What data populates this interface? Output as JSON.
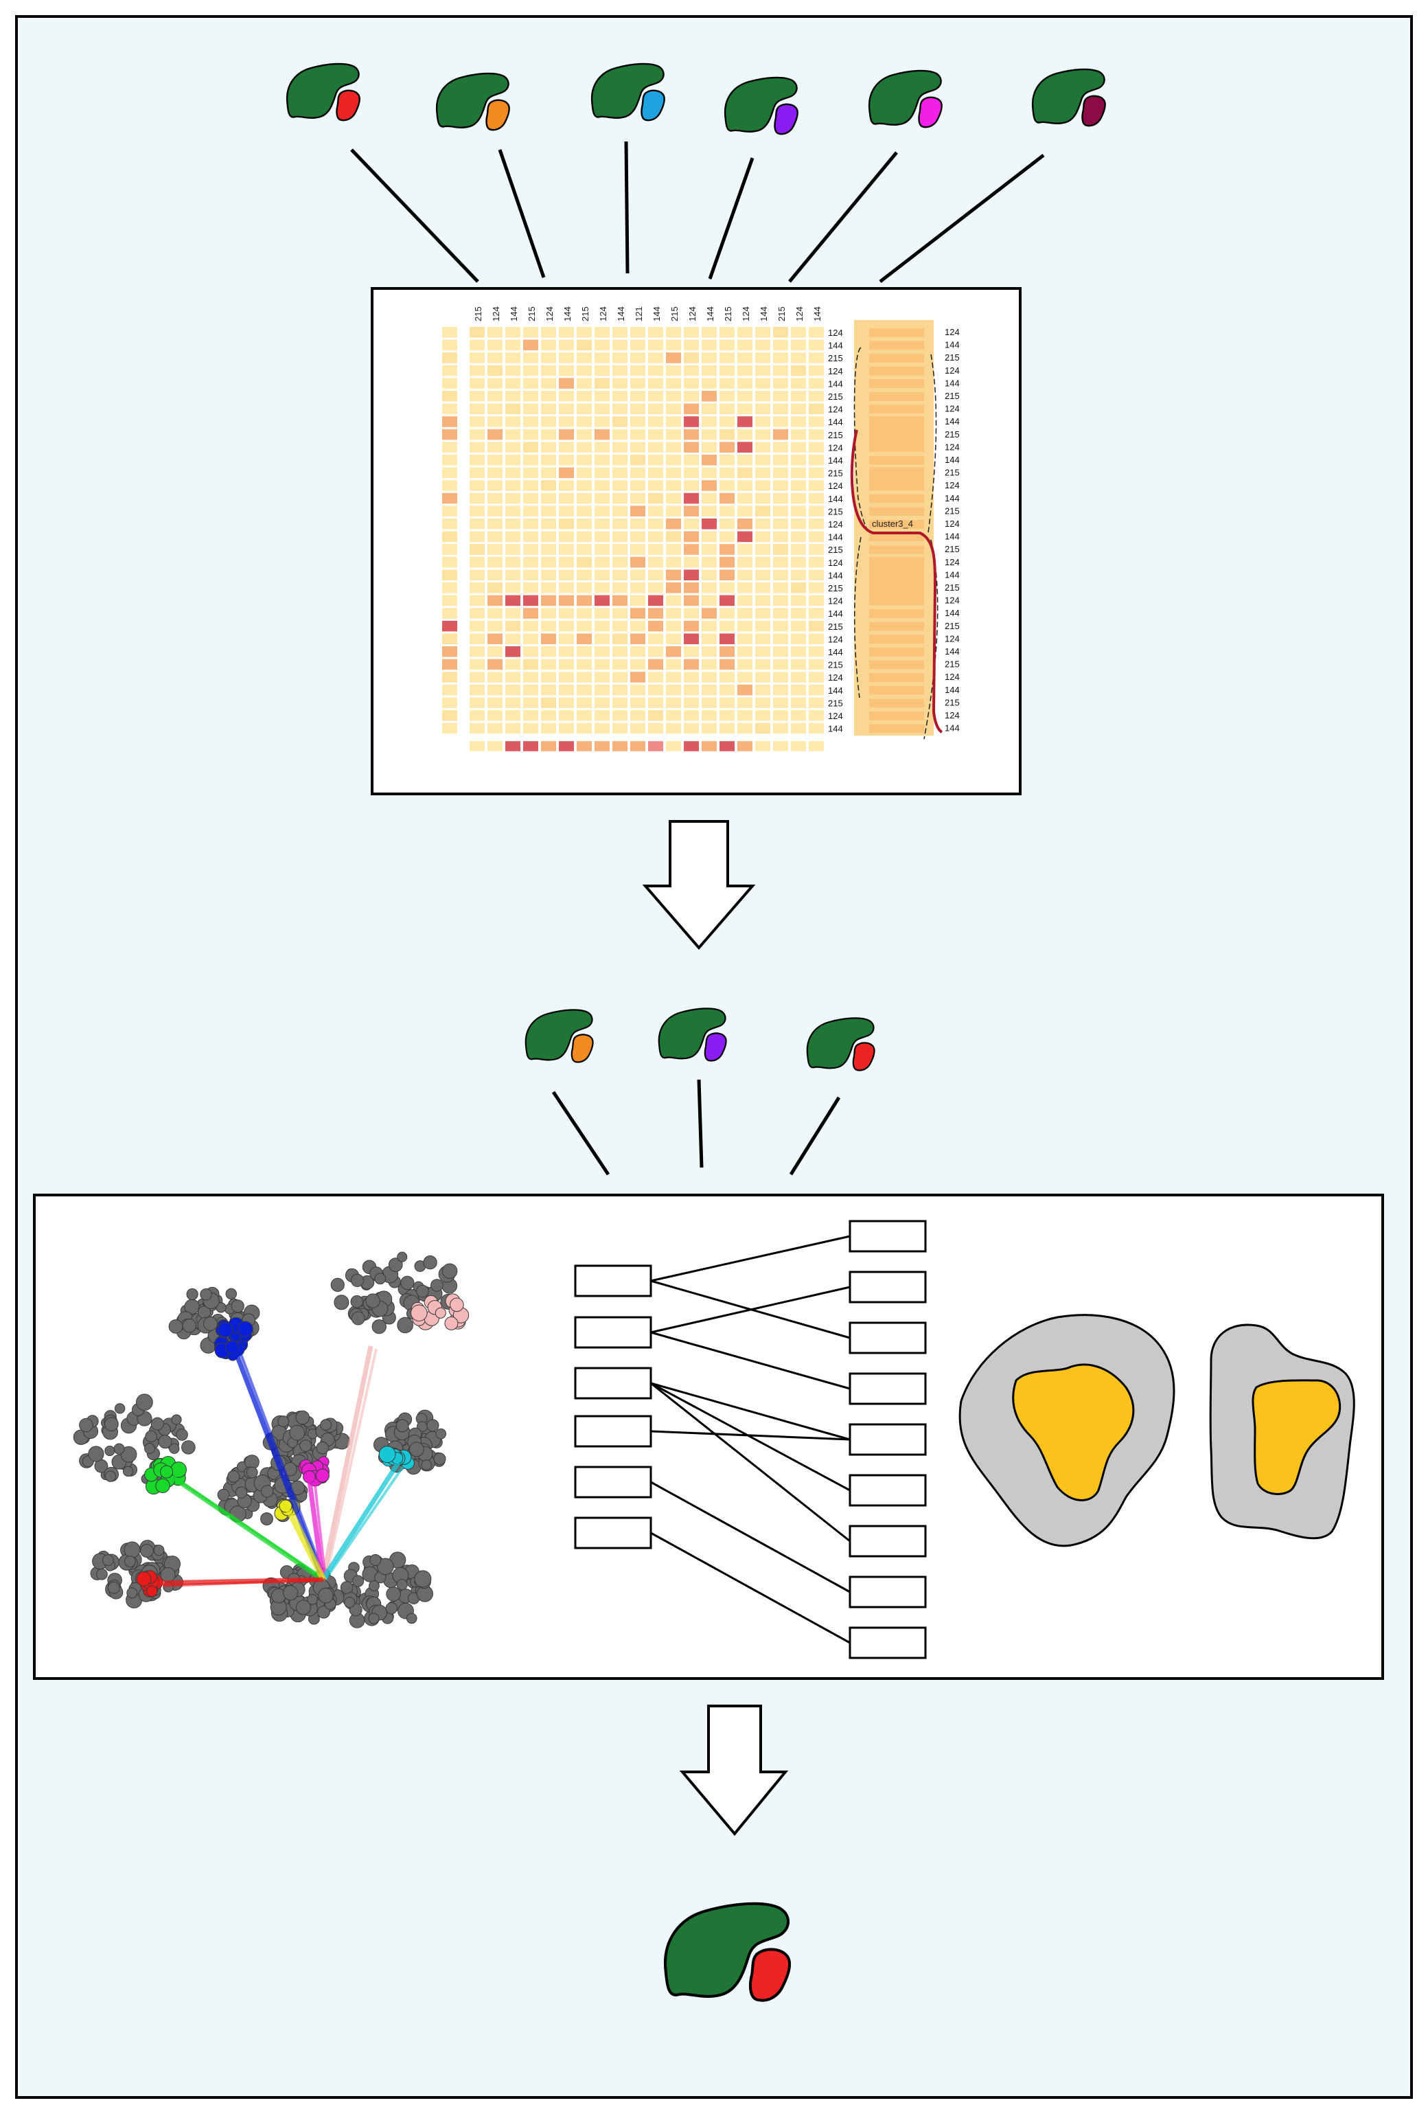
{
  "colors": {
    "background": "#eef8fb",
    "frame": "#000000",
    "shape_green": "#1f7535",
    "panel_white": "#ffffff",
    "heat_base": "#ffe9ad",
    "heat_light": "#fde2a0",
    "heat_mid": "#f6b27a",
    "heat_dark": "#db5a5f",
    "heat_pink": "#f08a88",
    "cluster_column": "#f9d692",
    "cluster_band": "#fbc27a",
    "brace_red": "#b0172b",
    "gold": "#fbc21b",
    "gray_region": "#c9c9c9",
    "protein_gray": "#6a6a6a"
  },
  "top_shapes": [
    {
      "name": "red",
      "accent": "#ec2424"
    },
    {
      "name": "orange",
      "accent": "#f28a22"
    },
    {
      "name": "blue",
      "accent": "#1ca3e0"
    },
    {
      "name": "purple",
      "accent": "#8b1df2"
    },
    {
      "name": "magenta",
      "accent": "#f21fe6"
    },
    {
      "name": "maroon",
      "accent": "#8b0a47"
    }
  ],
  "middle_shapes": [
    {
      "name": "orange",
      "accent": "#f28a22"
    },
    {
      "name": "purple",
      "accent": "#8b1df2"
    },
    {
      "name": "red",
      "accent": "#ec2424"
    }
  ],
  "final_shape": {
    "name": "red",
    "accent": "#ec2424"
  },
  "heatmap": {
    "column_labels": [
      "215",
      "124",
      "144",
      "215",
      "124",
      "144",
      "215",
      "124",
      "144",
      "121",
      "144",
      "215",
      "124",
      "144",
      "215",
      "124",
      "144",
      "215",
      "124",
      "144"
    ],
    "row_labels_inner": [
      "124",
      "144",
      "215",
      "124",
      "144",
      "215",
      "124",
      "144",
      "215",
      "124",
      "144",
      "215",
      "124",
      "144",
      "215",
      "124",
      "144",
      "215",
      "124",
      "144",
      "215",
      "124",
      "144",
      "215",
      "124",
      "144",
      "215",
      "124",
      "144",
      "215",
      "124",
      "144"
    ],
    "row_labels_outer": [
      "124",
      "144",
      "215",
      "124",
      "144",
      "215",
      "124",
      "144",
      "215",
      "124",
      "144",
      "215",
      "124",
      "144",
      "215",
      "124",
      "144",
      "215",
      "124",
      "144",
      "215",
      "124",
      "144",
      "215",
      "124",
      "144",
      "215",
      "124",
      "144",
      "215",
      "124",
      "144"
    ],
    "cluster_label": "cluster3_4"
  },
  "network": {
    "left_box_count": 6,
    "right_box_count": 9,
    "links": [
      [
        0,
        0
      ],
      [
        0,
        2
      ],
      [
        1,
        1
      ],
      [
        1,
        3
      ],
      [
        2,
        4
      ],
      [
        2,
        5
      ],
      [
        2,
        6
      ],
      [
        3,
        4
      ],
      [
        4,
        7
      ],
      [
        5,
        8
      ]
    ]
  },
  "protein_colors": [
    "#0a1fd8",
    "#f4b8b8",
    "#18d82a",
    "#e81fd0",
    "#16c8d6",
    "#e8e81a",
    "#e81a1a"
  ]
}
